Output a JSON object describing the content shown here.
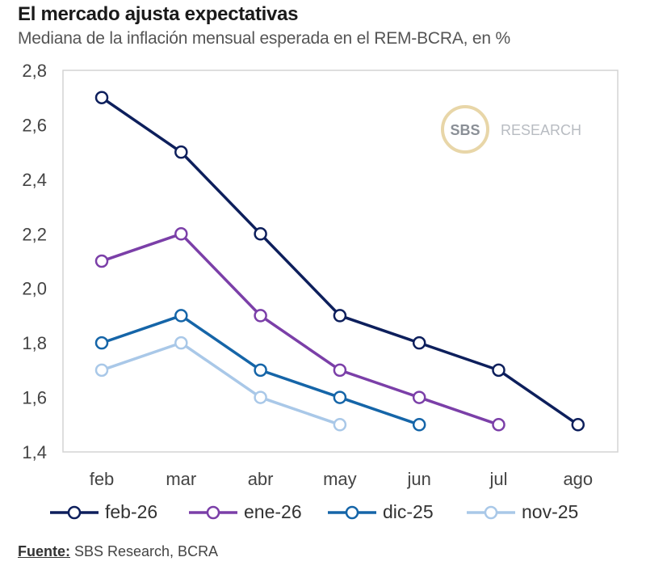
{
  "title": "El mercado ajusta expectativas",
  "subtitle": "Mediana de la inflación mensual esperada en el REM-BCRA, en %",
  "watermark": {
    "circle_text": "SBS",
    "text": "RESEARCH"
  },
  "source": {
    "label": "Fuente:",
    "text": " SBS Research, BCRA"
  },
  "chart_data": {
    "type": "line",
    "title": "El mercado ajusta expectativas",
    "subtitle": "Mediana de la inflación mensual esperada en el REM-BCRA, en %",
    "xlabel": "",
    "ylabel": "",
    "categories": [
      "feb",
      "mar",
      "abr",
      "may",
      "jun",
      "jul",
      "ago"
    ],
    "ylim": [
      1.4,
      2.8
    ],
    "yticks": [
      1.4,
      1.6,
      1.8,
      2.0,
      2.2,
      2.4,
      2.6,
      2.8
    ],
    "ytick_labels": [
      "1,4",
      "1,6",
      "1,8",
      "2,0",
      "2,2",
      "2,4",
      "2,6",
      "2,8"
    ],
    "grid": false,
    "legend_position": "bottom",
    "series": [
      {
        "name": "feb-26",
        "color": "#0d1f5c",
        "values": [
          2.7,
          2.5,
          2.2,
          1.9,
          1.8,
          1.7,
          1.5
        ]
      },
      {
        "name": "ene-26",
        "color": "#7b3fa8",
        "values": [
          2.1,
          2.2,
          1.9,
          1.7,
          1.6,
          1.5,
          null
        ]
      },
      {
        "name": "dic-25",
        "color": "#1565a8",
        "values": [
          1.8,
          1.9,
          1.7,
          1.6,
          1.5,
          null,
          null
        ]
      },
      {
        "name": "nov-25",
        "color": "#a9c8e8",
        "values": [
          1.7,
          1.8,
          1.6,
          1.5,
          null,
          null,
          null
        ]
      }
    ]
  }
}
